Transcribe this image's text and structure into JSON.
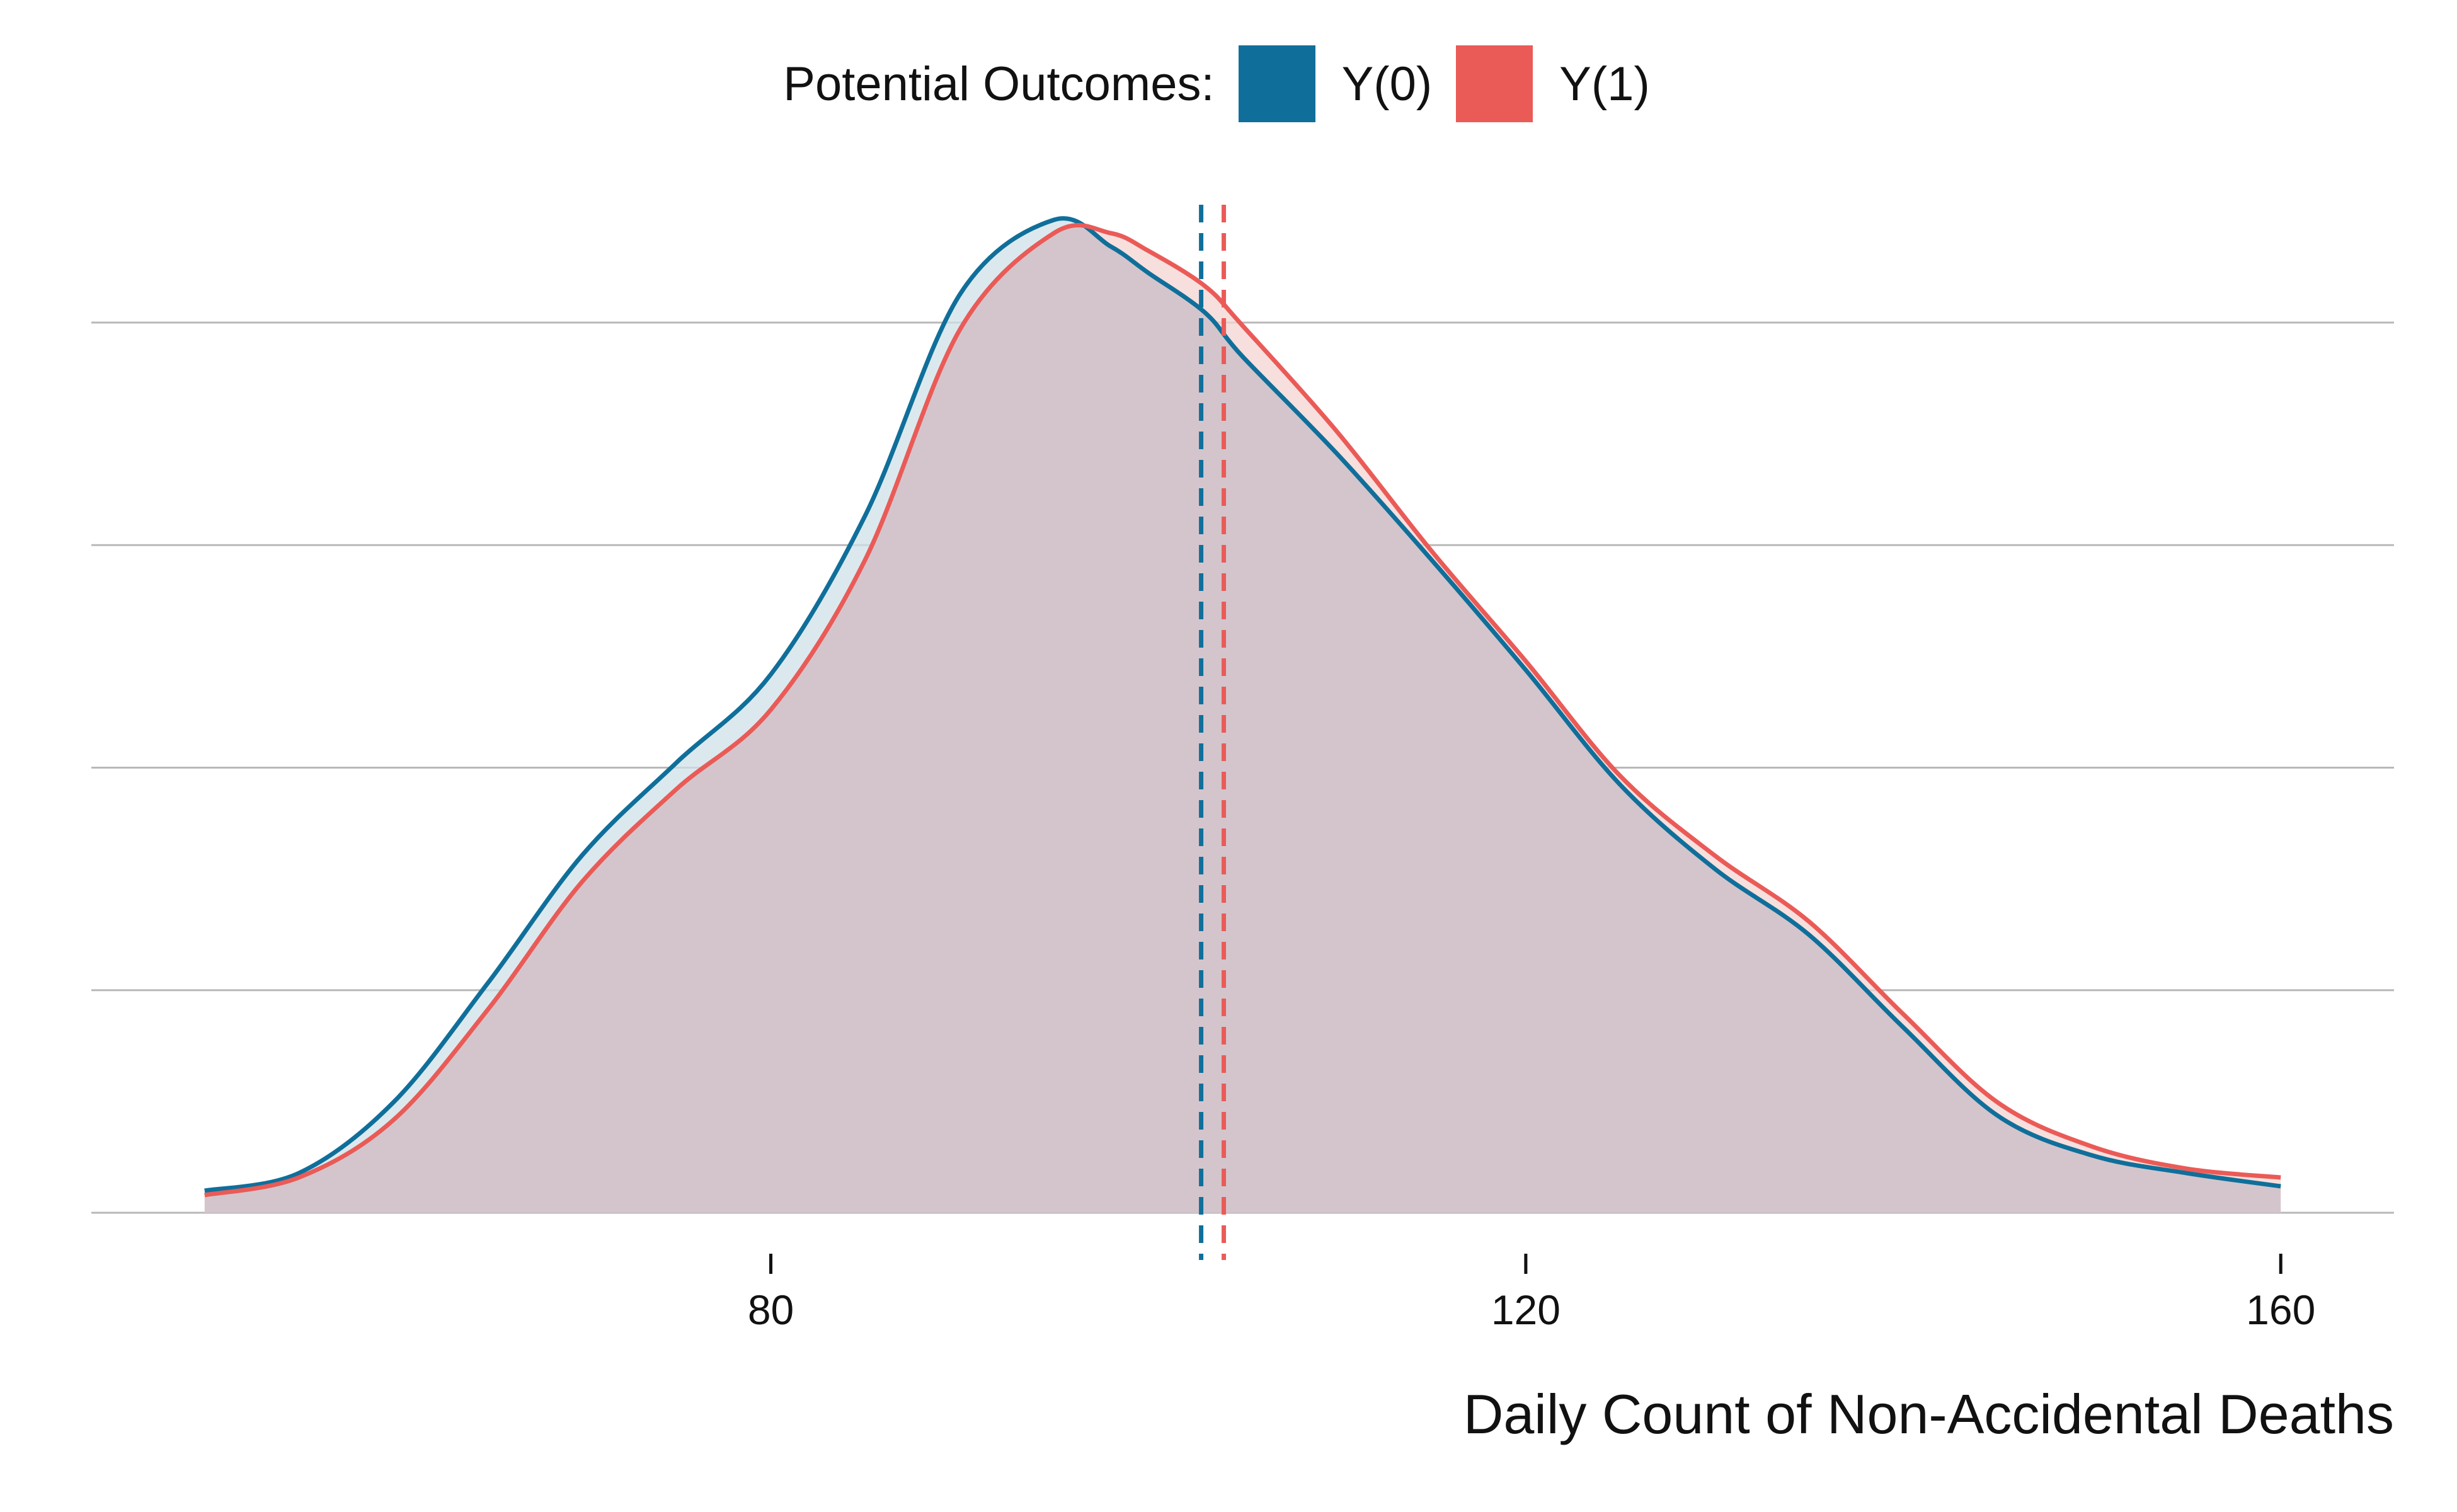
{
  "legend": {
    "title": "Potential Outcomes:",
    "items": [
      {
        "label": "Y(0)",
        "color": "#106f9a"
      },
      {
        "label": "Y(1)",
        "color": "#ea5b57"
      }
    ]
  },
  "colors": {
    "y0": "#106f9a",
    "y1": "#ea5b57",
    "overlap_fill": "#d4c5cc",
    "y0_fill": "#cfe1e8",
    "y1_fill": "#f4d4d2",
    "grid": "#b8b8b8"
  },
  "chart_data": {
    "type": "area",
    "title": "",
    "xlabel": "Daily Count of Non-Accidental Deaths",
    "ylabel": "",
    "xlim": [
      44,
      166
    ],
    "ylim": [
      0,
      0.0232
    ],
    "xticks": [
      80,
      120,
      160
    ],
    "grid": {
      "horizontal": true,
      "vertical": false
    },
    "legend_position": "top",
    "series": [
      {
        "name": "Y(0)",
        "x": [
          50,
          55,
          60,
          65,
          70,
          75,
          80,
          85,
          90,
          95,
          98,
          100,
          103,
          105,
          110,
          115,
          120,
          125,
          130,
          135,
          140,
          145,
          150,
          155,
          160
        ],
        "y": [
          0.0005,
          0.0009,
          0.0025,
          0.0052,
          0.0081,
          0.0102,
          0.0122,
          0.0158,
          0.0208,
          0.0225,
          0.0219,
          0.0213,
          0.0204,
          0.0194,
          0.0172,
          0.0148,
          0.0123,
          0.0097,
          0.0078,
          0.0063,
          0.0042,
          0.0022,
          0.0013,
          0.0009,
          0.0006
        ]
      },
      {
        "name": "Y(1)",
        "x": [
          50,
          55,
          60,
          65,
          70,
          75,
          80,
          85,
          90,
          95,
          98,
          100,
          103,
          105,
          110,
          115,
          120,
          125,
          130,
          135,
          140,
          145,
          150,
          155,
          160
        ],
        "y": [
          0.0004,
          0.0008,
          0.0021,
          0.0046,
          0.0075,
          0.0096,
          0.0114,
          0.0148,
          0.02,
          0.0222,
          0.0222,
          0.0218,
          0.021,
          0.0201,
          0.0177,
          0.015,
          0.0125,
          0.0099,
          0.0081,
          0.0066,
          0.0045,
          0.0025,
          0.0015,
          0.001,
          0.0008
        ]
      }
    ],
    "reference_lines": [
      {
        "series": "Y(0)",
        "x": 102.8,
        "style": "dashed"
      },
      {
        "series": "Y(1)",
        "x": 104.0,
        "style": "dashed"
      }
    ]
  }
}
